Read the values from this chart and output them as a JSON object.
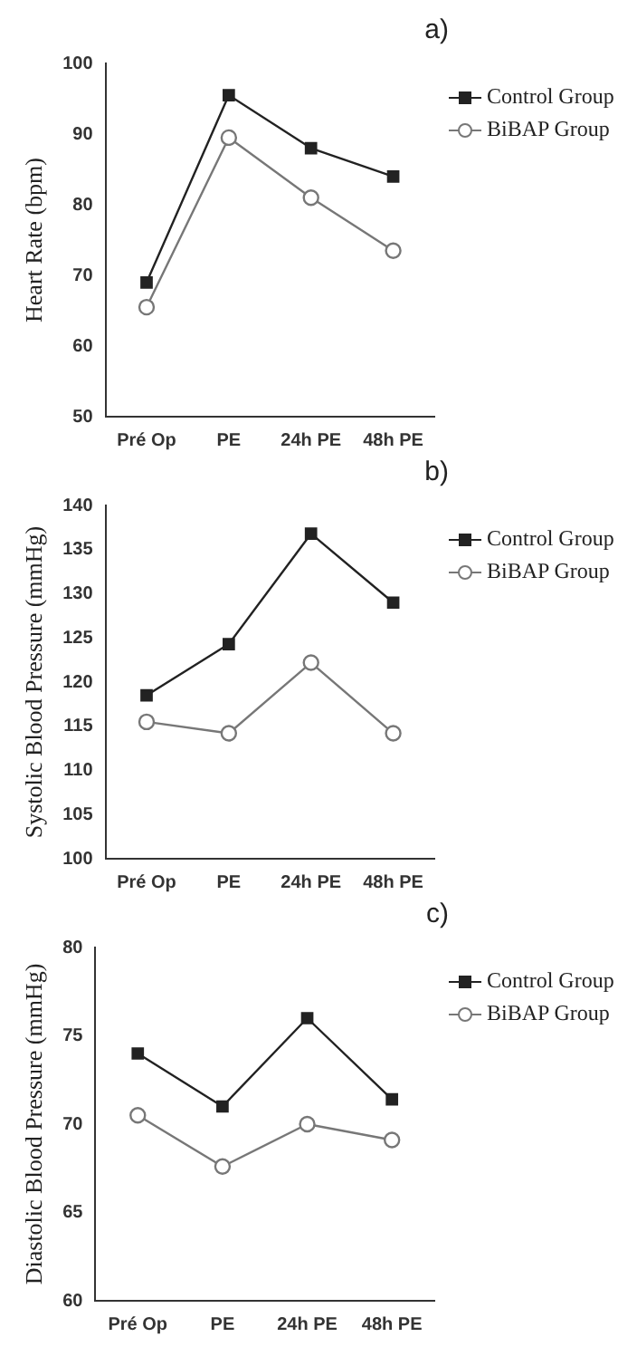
{
  "chart_data": [
    {
      "type": "line",
      "title": "a)",
      "ylabel": "Heart Rate (bpm)",
      "categories": [
        "Pré Op",
        "PE",
        "24h PE",
        "48h PE"
      ],
      "ylim": [
        50,
        100
      ],
      "yticks": [
        50,
        60,
        70,
        80,
        90,
        100
      ],
      "grid": false,
      "legend": "right",
      "series": [
        {
          "name": "Control Group",
          "color": "#222222",
          "marker": "square",
          "values": [
            69,
            95.5,
            88,
            84
          ]
        },
        {
          "name": "BiBAP Group",
          "color": "#777777",
          "marker": "circle",
          "values": [
            65.5,
            89.5,
            81,
            73.5
          ]
        }
      ]
    },
    {
      "type": "line",
      "title": "b)",
      "ylabel": "Systolic Blood Pressure (mmHg)",
      "categories": [
        "Pré Op",
        "PE",
        "24h PE",
        "48h PE"
      ],
      "ylim": [
        100,
        140
      ],
      "yticks": [
        100,
        105,
        110,
        115,
        120,
        125,
        130,
        135,
        140
      ],
      "grid": false,
      "legend": "right",
      "series": [
        {
          "name": "Control Group",
          "color": "#222222",
          "marker": "square",
          "values": [
            118.5,
            124.3,
            136.8,
            129
          ]
        },
        {
          "name": "BiBAP Group",
          "color": "#777777",
          "marker": "circle",
          "values": [
            115.5,
            114.2,
            122.2,
            114.2
          ]
        }
      ]
    },
    {
      "type": "line",
      "title": "c)",
      "ylabel": "Diastolic Blood Pressure (mmHg)",
      "categories": [
        "Pré Op",
        "PE",
        "24h PE",
        "48h PE"
      ],
      "ylim": [
        60,
        80
      ],
      "yticks": [
        60,
        65,
        70,
        75,
        80
      ],
      "grid": false,
      "legend": "right",
      "series": [
        {
          "name": "Control Group",
          "color": "#222222",
          "marker": "square",
          "values": [
            74,
            71,
            76,
            71.4
          ]
        },
        {
          "name": "BiBAP Group",
          "color": "#777777",
          "marker": "circle",
          "values": [
            70.5,
            67.6,
            70,
            69.1
          ]
        }
      ]
    }
  ]
}
